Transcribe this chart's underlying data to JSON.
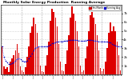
{
  "title": "Monthly Solar Energy Production  Running Average",
  "bar_color": "#dd0000",
  "avg_color": "#0000cc",
  "background_color": "#ffffff",
  "plot_bg_color": "#ffffff",
  "grid_color": "#aaaaaa",
  "text_color": "#000000",
  "border_color": "#000000",
  "ylim": [
    0,
    8
  ],
  "ytick_vals": [
    1,
    2,
    3,
    4,
    5,
    6,
    7
  ],
  "ytick_labels": [
    "1k",
    "2k",
    "3k",
    "4k",
    "5k",
    "6k",
    "7k"
  ],
  "values": [
    3.2,
    0.9,
    0.6,
    0.8,
    0.3,
    1.5,
    1.8,
    2.2,
    2.8,
    3.5,
    2.5,
    0.9,
    0.5,
    0.3,
    0.8,
    2.0,
    3.2,
    4.8,
    5.5,
    6.5,
    5.8,
    4.8,
    3.2,
    1.0,
    0.4,
    0.3,
    1.0,
    2.2,
    3.8,
    6.2,
    7.5,
    7.2,
    6.5,
    5.5,
    3.5,
    1.5,
    0.5,
    0.4,
    1.2,
    2.8,
    4.5,
    6.5,
    7.8,
    7.0,
    6.2,
    5.0,
    3.2,
    1.0,
    0.3,
    0.5,
    1.8,
    3.2,
    5.0,
    6.8,
    7.2,
    6.5,
    5.8,
    4.5,
    2.8,
    0.7,
    0.4,
    0.6,
    1.5,
    3.0,
    4.8,
    6.0,
    5.0,
    5.5,
    5.0,
    3.8,
    2.2,
    0.5
  ],
  "n_groups": 7,
  "legend_labels": [
    "This Month",
    "Running Avg"
  ],
  "legend_bar_color": "#dd0000",
  "legend_line_color": "#0000cc"
}
